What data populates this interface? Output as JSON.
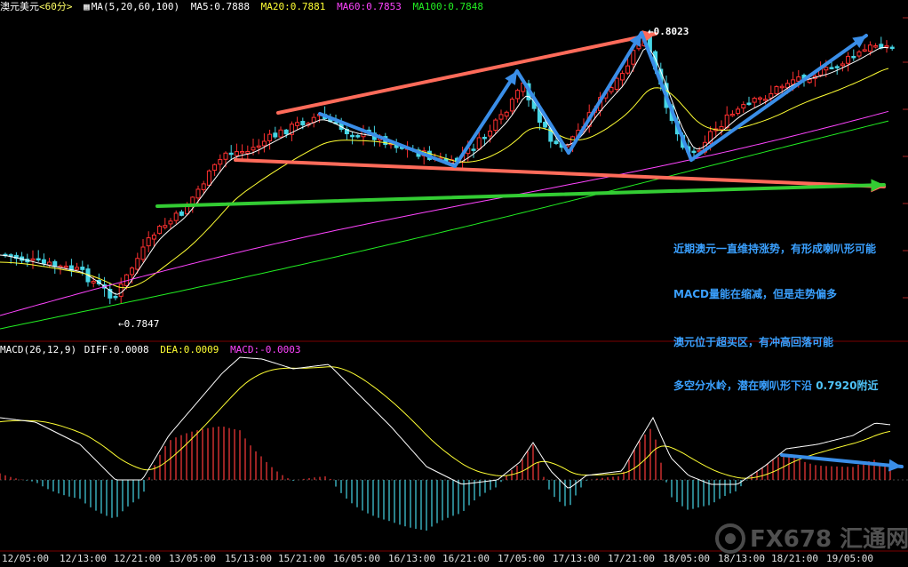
{
  "header": {
    "symbol": "澳元美元",
    "period": "<60分>",
    "ma_spec": "MA(5,20,60,100)",
    "ma5": "MA5:0.7888",
    "ma20": "MA20:0.7881",
    "ma60": "MA60:0.7853",
    "ma100": "MA100:0.7848",
    "colors": {
      "ma5": "#ffffff",
      "ma20": "#ffff33",
      "ma60": "#ff44ff",
      "ma100": "#22ee22"
    }
  },
  "macd_header": {
    "spec": "MACD(26,12,9)",
    "diff": "DIFF:0.0008",
    "dea": "DEA:0.0009",
    "macd": "MACD:-0.0003"
  },
  "price_labels": {
    "low": "0.7847",
    "high": "0.8023"
  },
  "annotations": [
    "近期澳元一直维持涨势，有形成喇叭形可能",
    "MACD量能在缩减，但是走势偏多",
    "澳元位于超买区，有冲高回落可能",
    "多空分水岭，潜在喇叭形下沿"
  ],
  "annotation_value": "0.7920附近",
  "watermark": "FX678 汇通网",
  "chart_data": {
    "type": "candlestick",
    "x_ticks": [
      "12/05:00",
      "12/13:00",
      "12/21:00",
      "13/05:00",
      "15/13:00",
      "15/21:00",
      "16/05:00",
      "16/13:00",
      "16/21:00",
      "17/05:00",
      "17/13:00",
      "17/21:00",
      "18/05:00",
      "18/13:00",
      "18/21:00",
      "19/05:00"
    ],
    "price_range": [
      0.7847,
      0.8023
    ],
    "series": [
      {
        "name": "MA5",
        "last": 0.7888
      },
      {
        "name": "MA20",
        "last": 0.7881
      },
      {
        "name": "MA60",
        "last": 0.7853
      },
      {
        "name": "MA100",
        "last": 0.7848
      }
    ],
    "macd": {
      "diff": 0.0008,
      "dea": 0.0009,
      "macd": -0.0003
    },
    "grid": false
  }
}
